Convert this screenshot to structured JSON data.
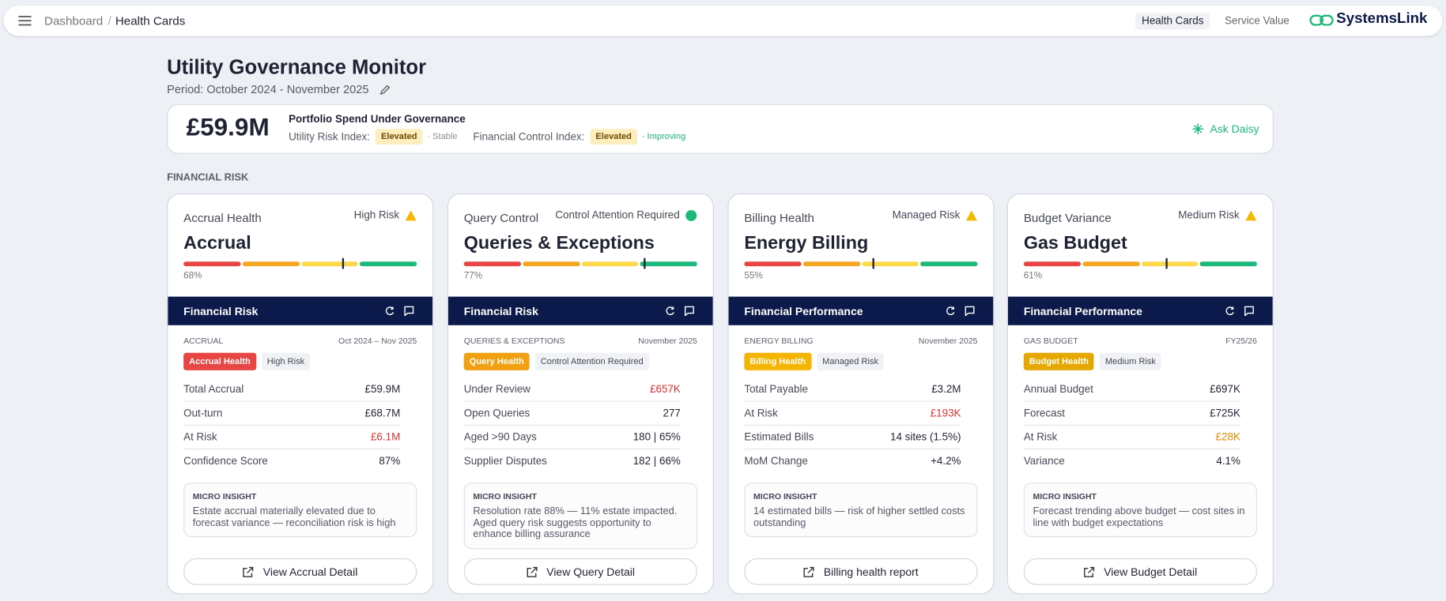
{
  "nav": {
    "breadcrumb": [
      "Dashboard",
      "Health Cards"
    ],
    "links": [
      "Health Cards",
      "Service Value"
    ],
    "brand": "SystemsLink"
  },
  "header": {
    "title": "Utility Governance Monitor",
    "period": "Period: October 2024 - November 2025"
  },
  "summary": {
    "amount": "£59.9M",
    "label": "Portfolio Spend Under Governance",
    "indices": [
      {
        "name": "Utility Risk Index:",
        "status": "Elevated",
        "trend": "· Stable",
        "trend_color": "#8a8f99"
      },
      {
        "name": "Financial Control Index:",
        "status": "Elevated",
        "trend": "· Improving",
        "trend_color": "#1db97a"
      }
    ],
    "action": "Ask Daisy"
  },
  "section": "FINANCIAL RISK",
  "cards": [
    {
      "category": "Accrual Health",
      "risk": "High Risk",
      "risk_marker": "triangle",
      "risk_color": "#f5b800",
      "title": "Accrual",
      "gauge": {
        "value": 68,
        "label": "68%"
      },
      "band": "Financial Risk",
      "meta": "ACCRUAL",
      "date": "Oct 2024 – Nov 2025",
      "tags": [
        {
          "text": "Accrual Health",
          "color": "#e84545"
        },
        {
          "text": "High Risk"
        }
      ],
      "rows": [
        {
          "label": "Total Accrual",
          "value": "£59.9M"
        },
        {
          "label": "Out-turn",
          "value": "£68.7M"
        },
        {
          "label": "At Risk",
          "value": "£6.1M",
          "color": "#e03030"
        },
        {
          "label": "Confidence Score",
          "value": "87%"
        }
      ],
      "insight": {
        "title": "MICRO INSIGHT",
        "text": "Estate accrual materially elevated due to forecast variance — reconciliation risk is high"
      },
      "button": "View Accrual Detail"
    },
    {
      "category": "Query Control",
      "risk": "Control Attention Required",
      "risk_marker": "dot",
      "risk_color": "#1db97a",
      "title": "Queries & Exceptions",
      "gauge": {
        "value": 77,
        "label": "77%"
      },
      "band": "Financial Risk",
      "meta": "QUERIES & EXCEPTIONS",
      "date": "November 2025",
      "tags": [
        {
          "text": "Query Health",
          "color": "#f0a010"
        },
        {
          "text": "Control Attention Required"
        }
      ],
      "rows": [
        {
          "label": "Under Review",
          "value": "£657K",
          "color": "#e03030"
        },
        {
          "label": "Open Queries",
          "value": "277"
        },
        {
          "label": "Aged >90 Days",
          "value": "180 | 65%"
        },
        {
          "label": "Supplier Disputes",
          "value": "182 | 66%"
        }
      ],
      "insight": {
        "title": "MICRO INSIGHT",
        "text": "Resolution rate 88% — 11% estate impacted. Aged query risk suggests opportunity to enhance billing assurance"
      },
      "button": "View Query Detail"
    },
    {
      "category": "Billing Health",
      "risk": "Managed Risk",
      "risk_marker": "triangle",
      "risk_color": "#f5b800",
      "title": "Energy Billing",
      "gauge": {
        "value": 55,
        "label": "55%"
      },
      "band": "Financial Performance",
      "meta": "ENERGY BILLING",
      "date": "November 2025",
      "tags": [
        {
          "text": "Billing Health",
          "color": "#f5b400"
        },
        {
          "text": "Managed Risk"
        }
      ],
      "rows": [
        {
          "label": "Total Payable",
          "value": "£3.2M"
        },
        {
          "label": "At Risk",
          "value": "£193K",
          "color": "#e03030"
        },
        {
          "label": "Estimated Bills",
          "value": "14 sites (1.5%)"
        },
        {
          "label": "MoM Change",
          "value": "+4.2%"
        }
      ],
      "insight": {
        "title": "MICRO INSIGHT",
        "text": "14 estimated bills — risk of higher settled costs outstanding"
      },
      "button": "Billing health report"
    },
    {
      "category": "Budget Variance",
      "risk": "Medium Risk",
      "risk_marker": "triangle",
      "risk_color": "#f5b800",
      "title": "Gas Budget",
      "gauge": {
        "value": 61,
        "label": "61%"
      },
      "band": "Financial Performance",
      "meta": "GAS BUDGET",
      "date": "FY25/26",
      "tags": [
        {
          "text": "Budget Health",
          "color": "#e6a800"
        },
        {
          "text": "Medium Risk"
        }
      ],
      "rows": [
        {
          "label": "Annual Budget",
          "value": "£697K"
        },
        {
          "label": "Forecast",
          "value": "£725K"
        },
        {
          "label": "At Risk",
          "value": "£28K",
          "color": "#e08a00"
        },
        {
          "label": "Variance",
          "value": "4.1%"
        }
      ],
      "insight": {
        "title": "MICRO INSIGHT",
        "text": "Forecast trending above budget — cost sites in line with budget expectations"
      },
      "button": "View Budget Detail"
    }
  ]
}
